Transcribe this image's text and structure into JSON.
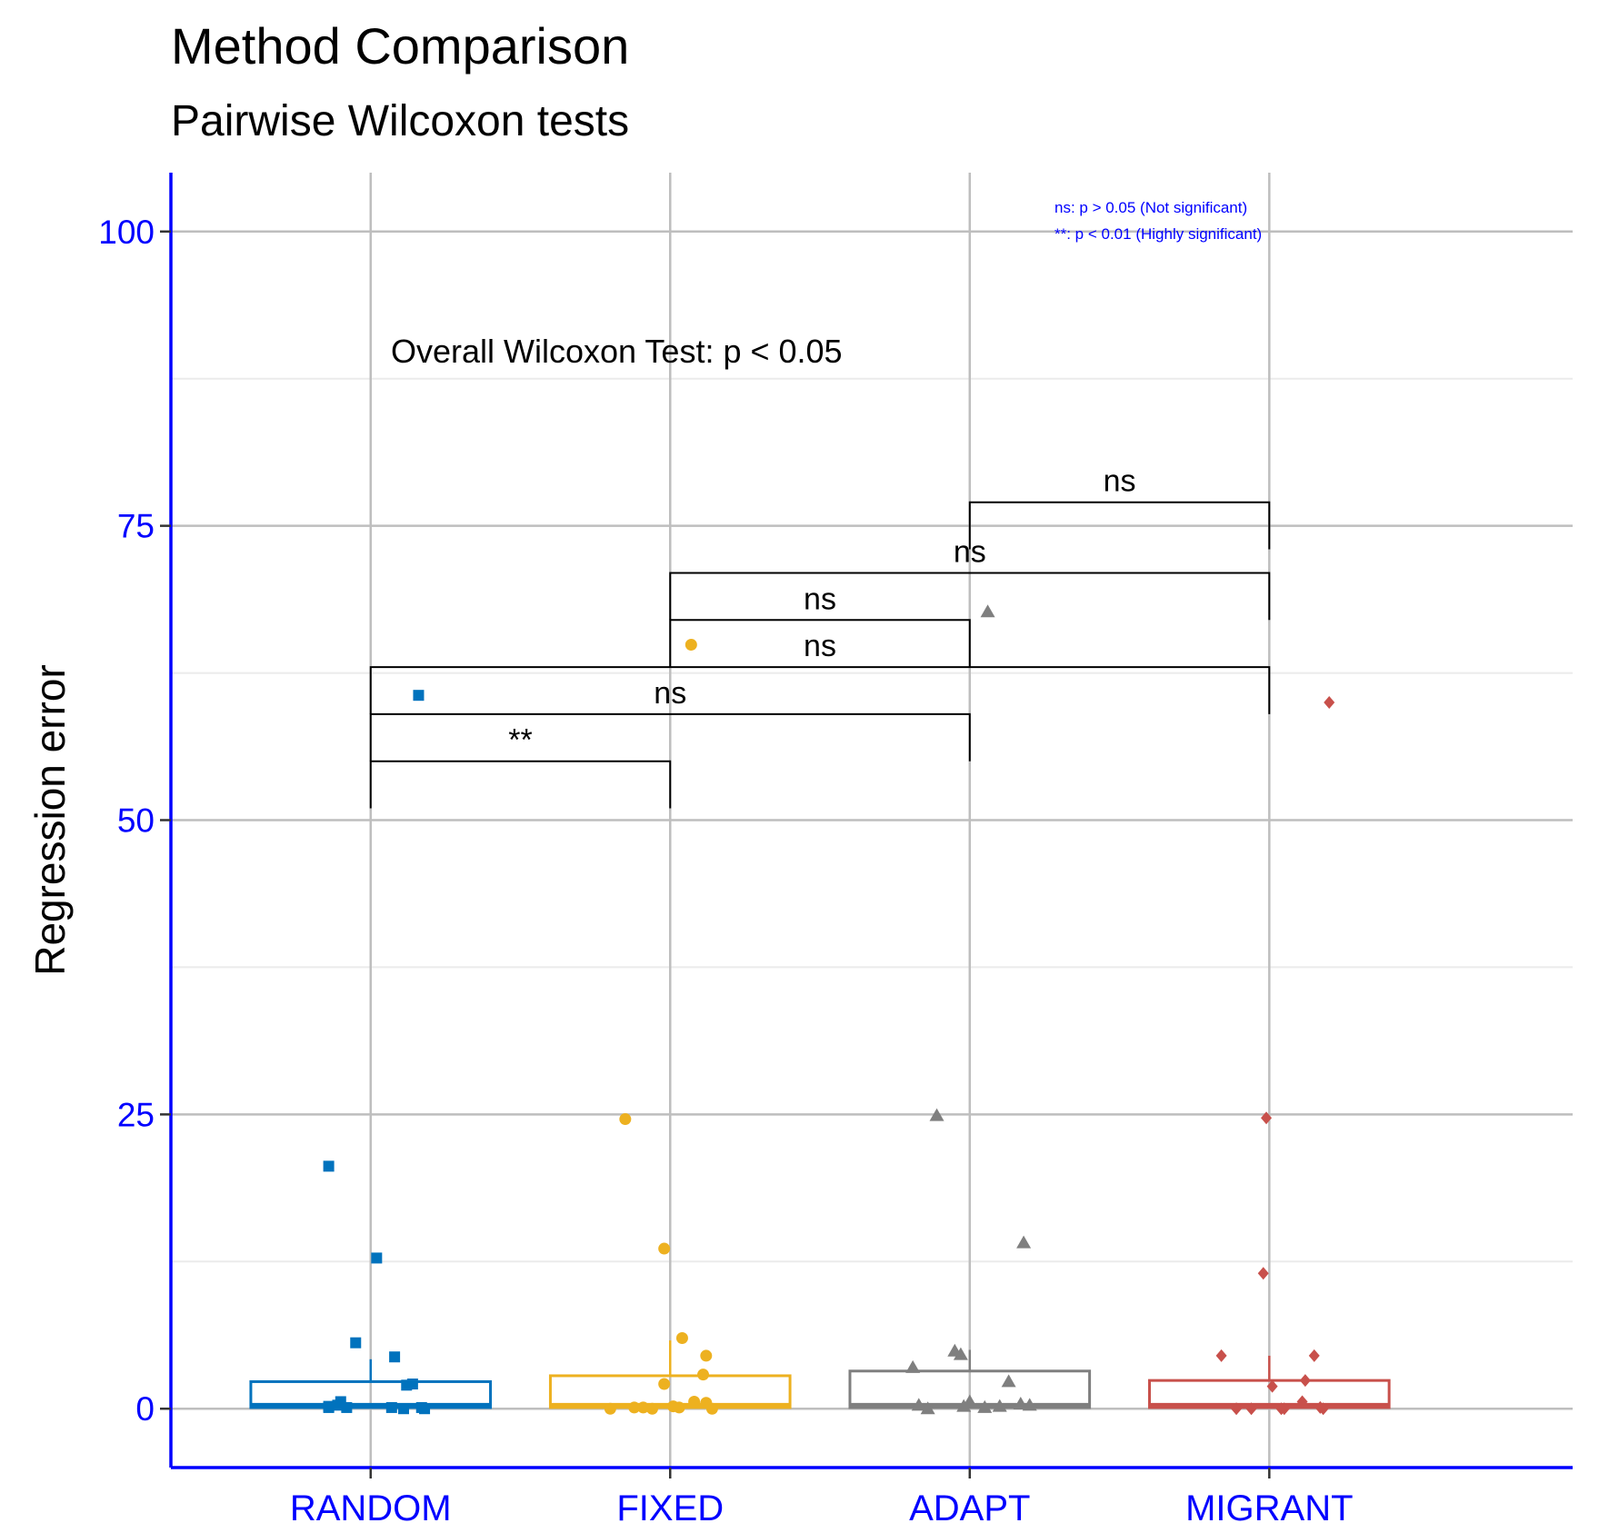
{
  "chart_data": {
    "type": "box",
    "title": "Method Comparison",
    "subtitle": "Pairwise Wilcoxon tests",
    "xlabel": "",
    "ylabel": "Regression error",
    "ylim": [
      -5,
      105
    ],
    "yticks": [
      0,
      25,
      50,
      75,
      100
    ],
    "grid": true,
    "categories": [
      "RANDOM",
      "FIXED",
      "ADAPT",
      "MIGRANT"
    ],
    "colors": {
      "RANDOM": "#0072BD",
      "FIXED": "#EDB120",
      "ADAPT": "#7F7F7F",
      "MIGRANT": "#C8504B"
    },
    "axis_color": "#0000FF",
    "shapes": {
      "RANDOM": "square",
      "FIXED": "circle",
      "ADAPT": "triangle",
      "MIGRANT": "diamond"
    },
    "boxes": [
      {
        "group": "RANDOM",
        "q1": 0.1,
        "median": 0.3,
        "q3": 2.3,
        "whisker_low": 0.0,
        "whisker_high": 4.2
      },
      {
        "group": "FIXED",
        "q1": 0.1,
        "median": 0.3,
        "q3": 2.8,
        "whisker_low": 0.0,
        "whisker_high": 5.8
      },
      {
        "group": "ADAPT",
        "q1": 0.1,
        "median": 0.3,
        "q3": 3.2,
        "whisker_low": 0.0,
        "whisker_high": 5.0
      },
      {
        "group": "MIGRANT",
        "q1": 0.1,
        "median": 0.3,
        "q3": 2.4,
        "whisker_low": 0.0,
        "whisker_high": 4.5
      }
    ],
    "points": [
      {
        "group": "RANDOM",
        "jitter": [
          -0.14,
          0.16,
          0.02,
          -0.05,
          0.08,
          -0.14,
          0.14,
          -0.1,
          0.12,
          0.17,
          -0.11,
          0.18,
          0.07,
          -0.08,
          0.11,
          -0.14
        ],
        "values": [
          20.6,
          60.6,
          12.8,
          5.6,
          4.4,
          0.2,
          2.1,
          0.6,
          2.0,
          0.1,
          0.3,
          0.0,
          0.1,
          0.1,
          0.0,
          0.1
        ]
      },
      {
        "group": "FIXED",
        "jitter": [
          -0.15,
          0.07,
          -0.02,
          0.04,
          0.12,
          0.11,
          -0.02,
          -0.09,
          0.12,
          -0.2,
          0.08,
          0.01,
          0.03,
          -0.12,
          0.14,
          -0.06
        ],
        "values": [
          24.6,
          64.9,
          13.6,
          6.0,
          4.5,
          2.9,
          2.1,
          0.1,
          0.5,
          0.0,
          0.6,
          0.2,
          0.1,
          0.1,
          0.0,
          0.0
        ]
      },
      {
        "group": "ADAPT",
        "jitter": [
          -0.11,
          0.06,
          0.18,
          -0.03,
          -0.05,
          0.13,
          -0.19,
          -0.17,
          0.17,
          0.0,
          -0.02,
          0.05,
          0.1,
          0.2,
          -0.14
        ],
        "values": [
          24.9,
          67.7,
          14.1,
          4.6,
          4.9,
          2.3,
          3.5,
          0.3,
          0.4,
          0.6,
          0.2,
          0.1,
          0.2,
          0.3,
          0.0
        ]
      },
      {
        "group": "MIGRANT",
        "jitter": [
          -0.01,
          0.2,
          -0.02,
          0.15,
          -0.16,
          0.12,
          0.01,
          0.11,
          0.17,
          -0.06,
          0.05,
          -0.11,
          0.18,
          0.04
        ],
        "values": [
          24.7,
          60.0,
          11.5,
          4.5,
          4.5,
          2.4,
          1.9,
          0.6,
          0.1,
          0.0,
          0.0,
          0.0,
          0.0,
          0.0
        ]
      }
    ],
    "brackets": [
      {
        "from": "RANDOM",
        "to": "FIXED",
        "y": 55.0,
        "label": "**"
      },
      {
        "from": "RANDOM",
        "to": "ADAPT",
        "y": 59.0,
        "label": "ns"
      },
      {
        "from": "RANDOM",
        "to": "MIGRANT",
        "y": 63.0,
        "label": "ns"
      },
      {
        "from": "FIXED",
        "to": "ADAPT",
        "y": 67.0,
        "label": "ns"
      },
      {
        "from": "FIXED",
        "to": "MIGRANT",
        "y": 71.0,
        "label": "ns"
      },
      {
        "from": "ADAPT",
        "to": "MIGRANT",
        "y": 77.0,
        "label": "ns"
      }
    ],
    "annotations": {
      "overall": "Overall Wilcoxon Test: p < 0.05",
      "legend_lines": [
        "ns: p > 0.05 (Not significant)",
        "**: p < 0.01 (Highly significant)"
      ]
    }
  }
}
